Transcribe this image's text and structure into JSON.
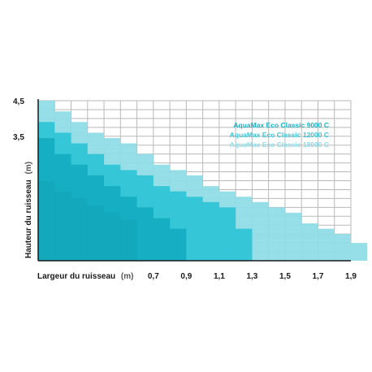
{
  "chart_data": {
    "type": "area",
    "xlabel": "Largeur du ruisseau",
    "xunit": "(m)",
    "ylabel": "Hauteur du ruisseau",
    "yunit": "(m)",
    "x_ticks": [
      "0,7",
      "0,9",
      "1,1",
      "1,3",
      "1,5",
      "1,7",
      "1,9"
    ],
    "x_tick_values": [
      0.7,
      0.9,
      1.1,
      1.3,
      1.5,
      1.7,
      1.9
    ],
    "y_ticks": [
      "4,5",
      "3,5"
    ],
    "y_tick_values": [
      4.5,
      3.5
    ],
    "xlim": [
      0,
      1.9
    ],
    "ylim": [
      0,
      4.5
    ],
    "grid": true,
    "legend_position": "top-right",
    "series": [
      {
        "name": "AquaMax Eco Classic 18000 C",
        "color": "#8ddce6",
        "steps": [
          [
            0,
            4.5
          ],
          [
            0.1,
            4.2
          ],
          [
            0.2,
            3.9
          ],
          [
            0.3,
            3.6
          ],
          [
            0.4,
            3.45
          ],
          [
            0.5,
            3.3
          ],
          [
            0.6,
            3.0
          ],
          [
            0.7,
            2.7
          ],
          [
            0.8,
            2.55
          ],
          [
            0.9,
            2.4
          ],
          [
            1.0,
            2.1
          ],
          [
            1.1,
            1.95
          ],
          [
            1.2,
            1.8
          ],
          [
            1.3,
            1.65
          ],
          [
            1.4,
            1.5
          ],
          [
            1.5,
            1.35
          ],
          [
            1.6,
            1.05
          ],
          [
            1.7,
            0.9
          ],
          [
            1.8,
            0.75
          ],
          [
            1.9,
            0.5
          ]
        ]
      },
      {
        "name": "AquaMax Eco Classic 12000 C",
        "color": "#2cc4d6",
        "steps": [
          [
            0,
            3.9
          ],
          [
            0.1,
            3.6
          ],
          [
            0.2,
            3.3
          ],
          [
            0.3,
            3.0
          ],
          [
            0.4,
            2.7
          ],
          [
            0.5,
            2.55
          ],
          [
            0.6,
            2.4
          ],
          [
            0.7,
            2.1
          ],
          [
            0.8,
            1.95
          ],
          [
            0.9,
            1.8
          ],
          [
            1.0,
            1.65
          ],
          [
            1.1,
            1.5
          ],
          [
            1.2,
            0.9
          ]
        ]
      },
      {
        "name": "AquaMax Eco Classic 9000 C",
        "color": "#14abc0",
        "steps": [
          [
            0,
            3.45
          ],
          [
            0.1,
            3.0
          ],
          [
            0.2,
            2.7
          ],
          [
            0.3,
            2.4
          ],
          [
            0.4,
            2.1
          ],
          [
            0.5,
            1.8
          ],
          [
            0.6,
            1.5
          ],
          [
            0.7,
            1.2
          ],
          [
            0.8,
            0.9
          ]
        ]
      }
    ]
  },
  "legend": {
    "items": [
      {
        "label": "AquaMax Eco Classic 9000 C",
        "color": "#17b3c7"
      },
      {
        "label": "AquaMax Eco Classic 12000 C",
        "color": "#3fc6d6"
      },
      {
        "label": "AquaMax Eco Classic 18000 C",
        "color": "#8fdbe5"
      }
    ]
  },
  "colors": {
    "grid": "#b9b9b9",
    "axis": "#1a1a1a",
    "text": "#1a1a1a"
  }
}
